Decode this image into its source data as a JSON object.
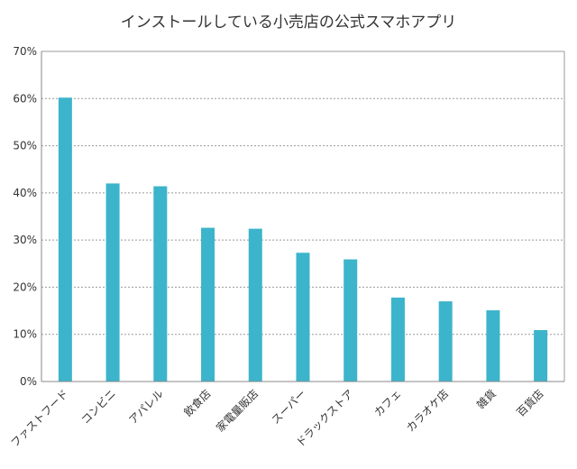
{
  "chart_data": {
    "type": "bar",
    "title": "インストールしている小売店の公式スマホアプリ",
    "xlabel": "",
    "ylabel": "",
    "categories": [
      "ファストフード",
      "コンビニ",
      "アパレル",
      "飲食店",
      "家電量販店",
      "スーパー",
      "ドラックストア",
      "カフェ",
      "カラオケ店",
      "雑貨",
      "百貨店"
    ],
    "values": [
      60.2,
      42.0,
      41.4,
      32.6,
      32.4,
      27.3,
      25.9,
      17.8,
      17.0,
      15.1,
      10.9
    ],
    "unit": "%",
    "ylim": [
      0,
      70
    ],
    "yticks": [
      "0%",
      "10%",
      "20%",
      "30%",
      "40%",
      "50%",
      "60%",
      "70%"
    ],
    "grid": true,
    "legend": "none",
    "bar_color": "#3cb4cb",
    "gridline_color": "#999999"
  }
}
